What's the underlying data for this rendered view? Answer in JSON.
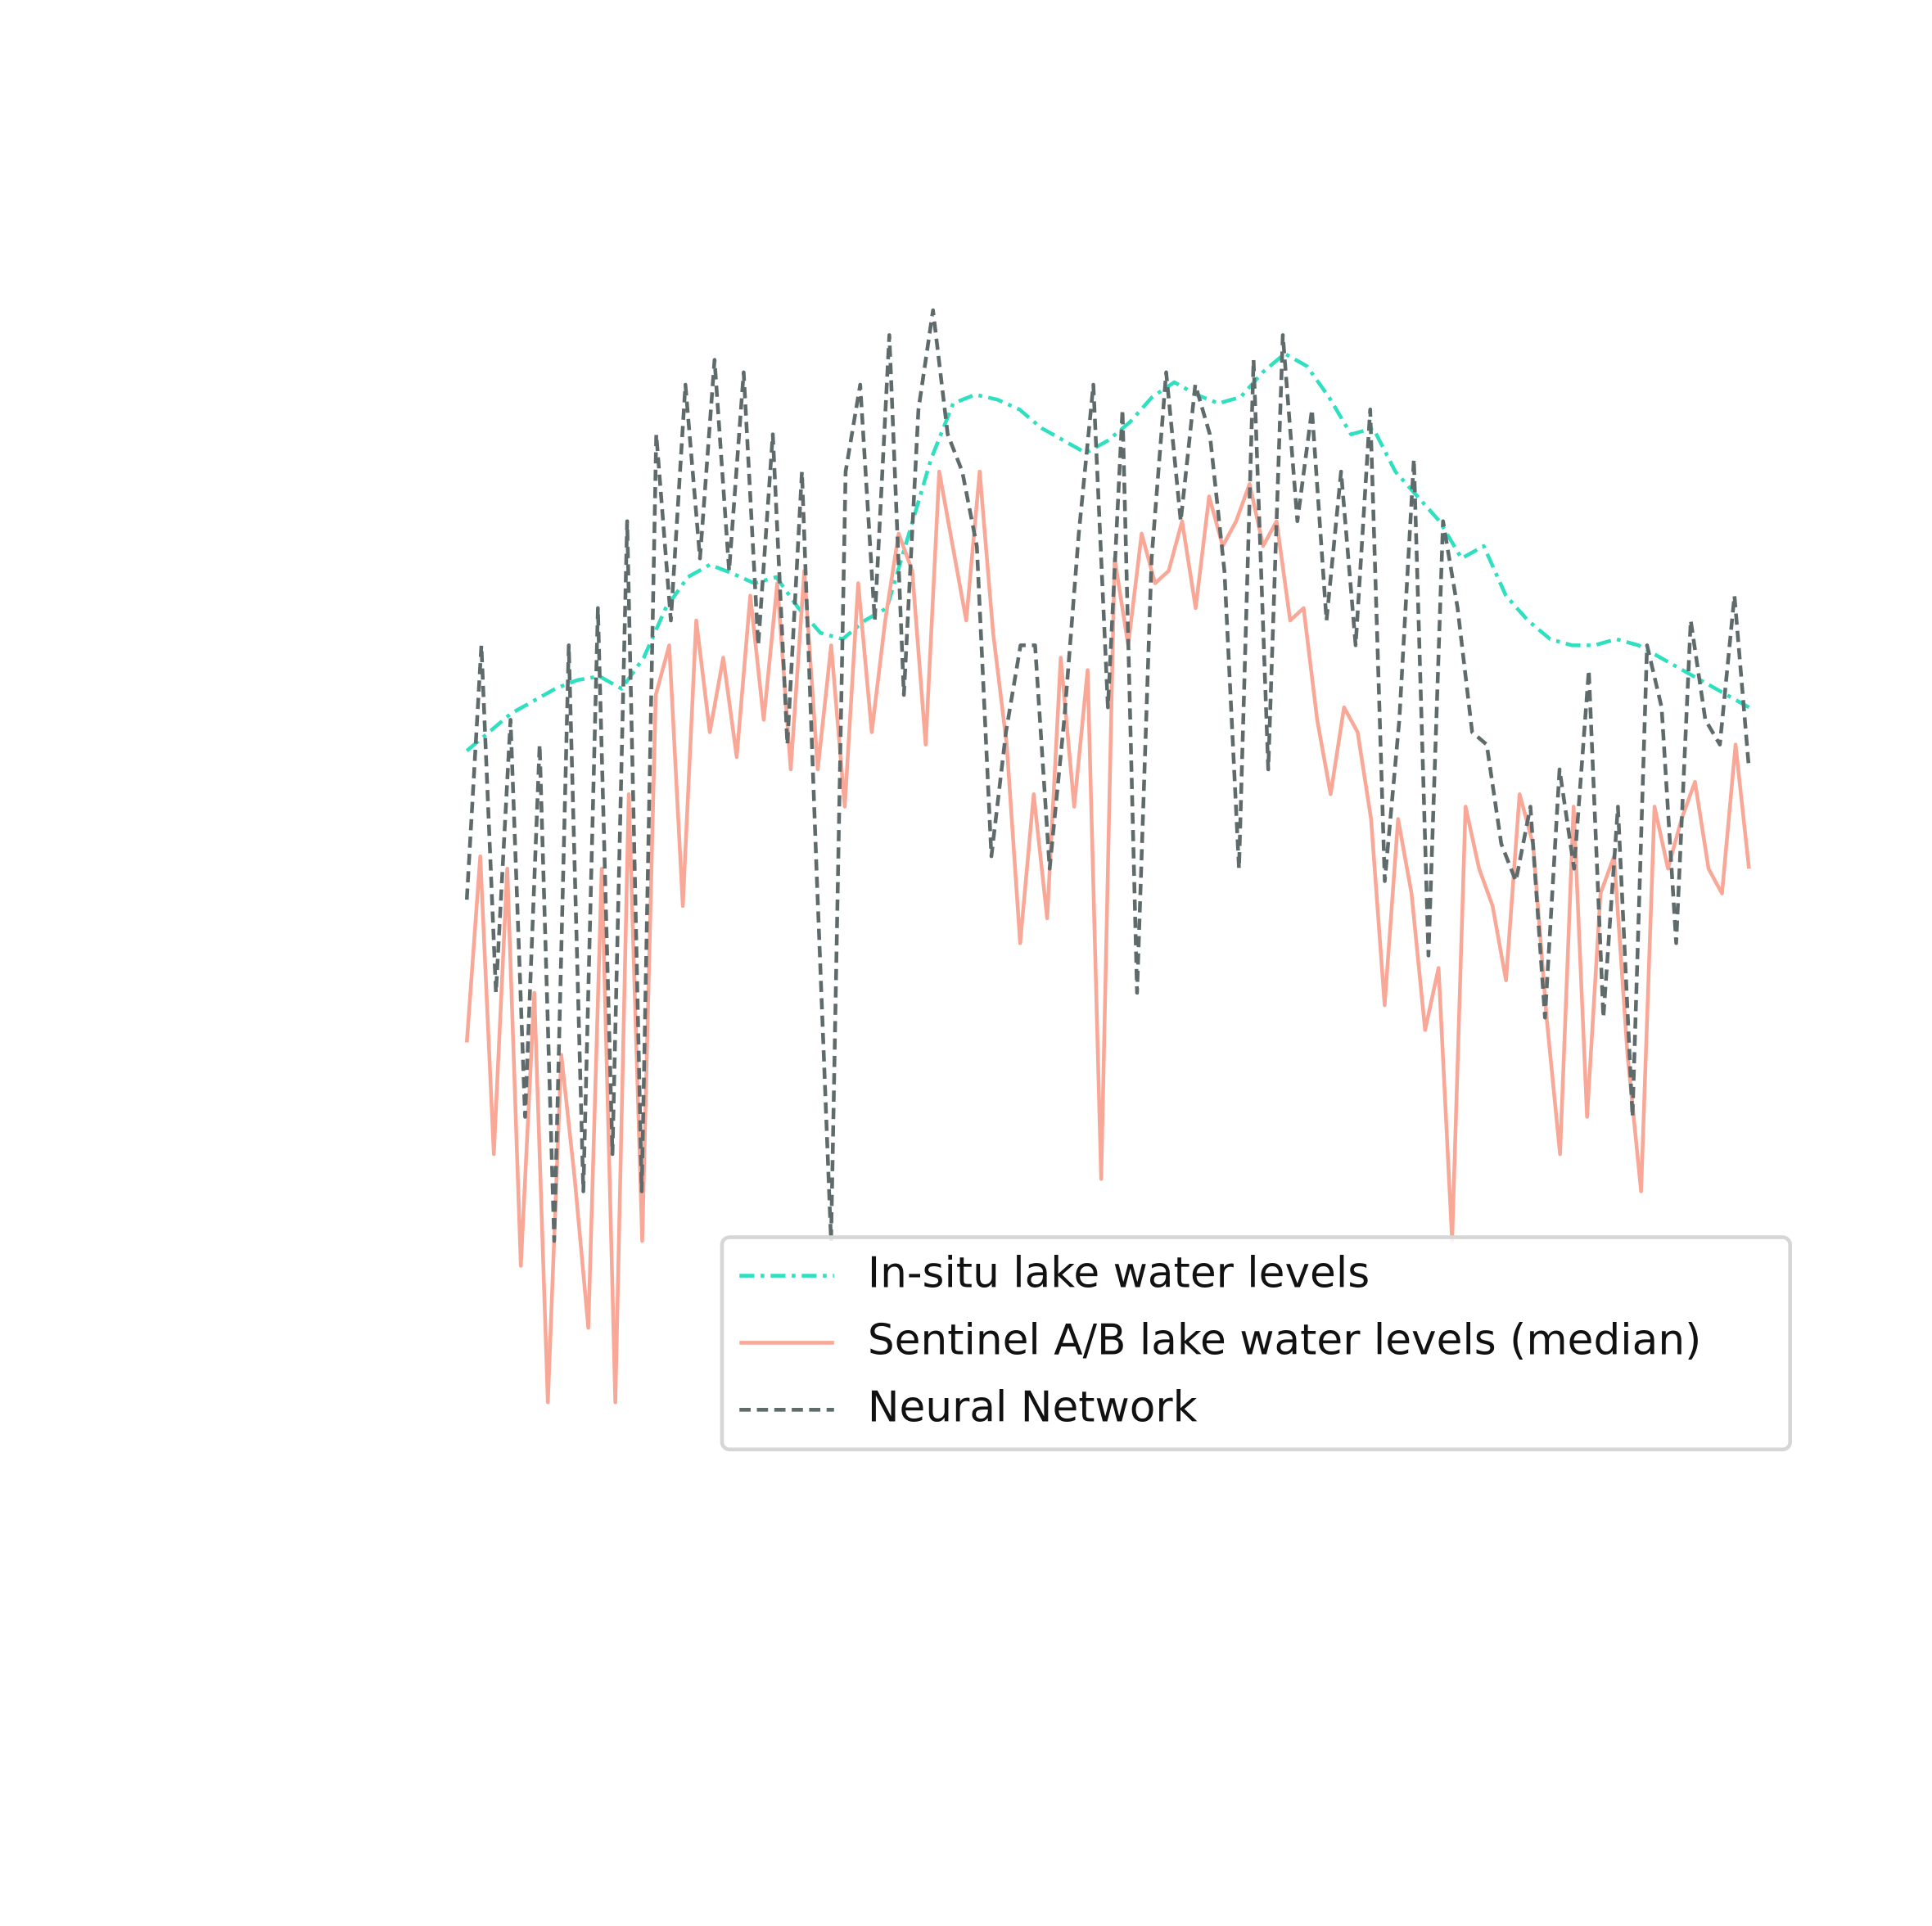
{
  "chart_data": {
    "type": "line",
    "ylim": [
      -352,
      1200
    ],
    "legend": "lower right",
    "series": [
      {
        "name": "In-situ lake water levels",
        "color": "#2ee0c0",
        "style": "dashdot",
        "values": [
          595,
          610,
          625,
          635,
          645,
          652,
          655,
          645,
          670,
          710,
          735,
          745,
          738,
          730,
          735,
          710,
          690,
          685,
          700,
          710,
          770,
          830,
          875,
          882,
          878,
          870,
          855,
          845,
          835,
          845,
          860,
          880,
          892,
          882,
          875,
          880,
          900,
          915,
          905,
          880,
          850,
          855,
          820,
          800,
          780,
          750,
          760,
          720,
          700,
          685,
          680,
          680,
          685,
          680,
          670,
          660,
          650,
          640,
          630
        ]
      },
      {
        "name": "Sentinel A/B lake water levels (median)",
        "color": "#f9a898",
        "style": "solid",
        "values": [
          360,
          510,
          270,
          500,
          180,
          400,
          70,
          350,
          250,
          130,
          500,
          70,
          560,
          200,
          640,
          680,
          470,
          700,
          610,
          670,
          590,
          720,
          620,
          730,
          580,
          740,
          580,
          680,
          550,
          730,
          610,
          700,
          770,
          740,
          600,
          820,
          760,
          700,
          820,
          690,
          600,
          440,
          560,
          460,
          670,
          550,
          660,
          250,
          750,
          680,
          770,
          730,
          740,
          780,
          710,
          800,
          760,
          780,
          810,
          760,
          780,
          700,
          710,
          620,
          560,
          630,
          610,
          540,
          390,
          540,
          480,
          370,
          420,
          200,
          550,
          500,
          470,
          410,
          560,
          520,
          380,
          270,
          550,
          300,
          480,
          510,
          350,
          240,
          550,
          500,
          540,
          570,
          500,
          480,
          600,
          500
        ]
      },
      {
        "name": "Neural Network",
        "color": "#5f6b6b",
        "style": "dashed",
        "values": [
          475,
          680,
          400,
          620,
          300,
          600,
          200,
          680,
          240,
          710,
          270,
          780,
          240,
          850,
          700,
          890,
          750,
          910,
          740,
          900,
          680,
          850,
          600,
          820,
          500,
          200,
          820,
          890,
          700,
          930,
          640,
          870,
          950,
          850,
          820,
          760,
          510,
          610,
          680,
          680,
          500,
          620,
          770,
          890,
          630,
          870,
          400,
          750,
          900,
          780,
          890,
          850,
          740,
          500,
          910,
          580,
          930,
          780,
          870,
          700,
          820,
          680,
          870,
          490,
          620,
          830,
          430,
          780,
          710,
          610,
          600,
          520,
          490,
          550,
          380,
          580,
          500,
          660,
          380,
          550,
          300,
          680,
          630,
          440,
          700,
          620,
          600,
          720,
          580
        ]
      }
    ]
  }
}
